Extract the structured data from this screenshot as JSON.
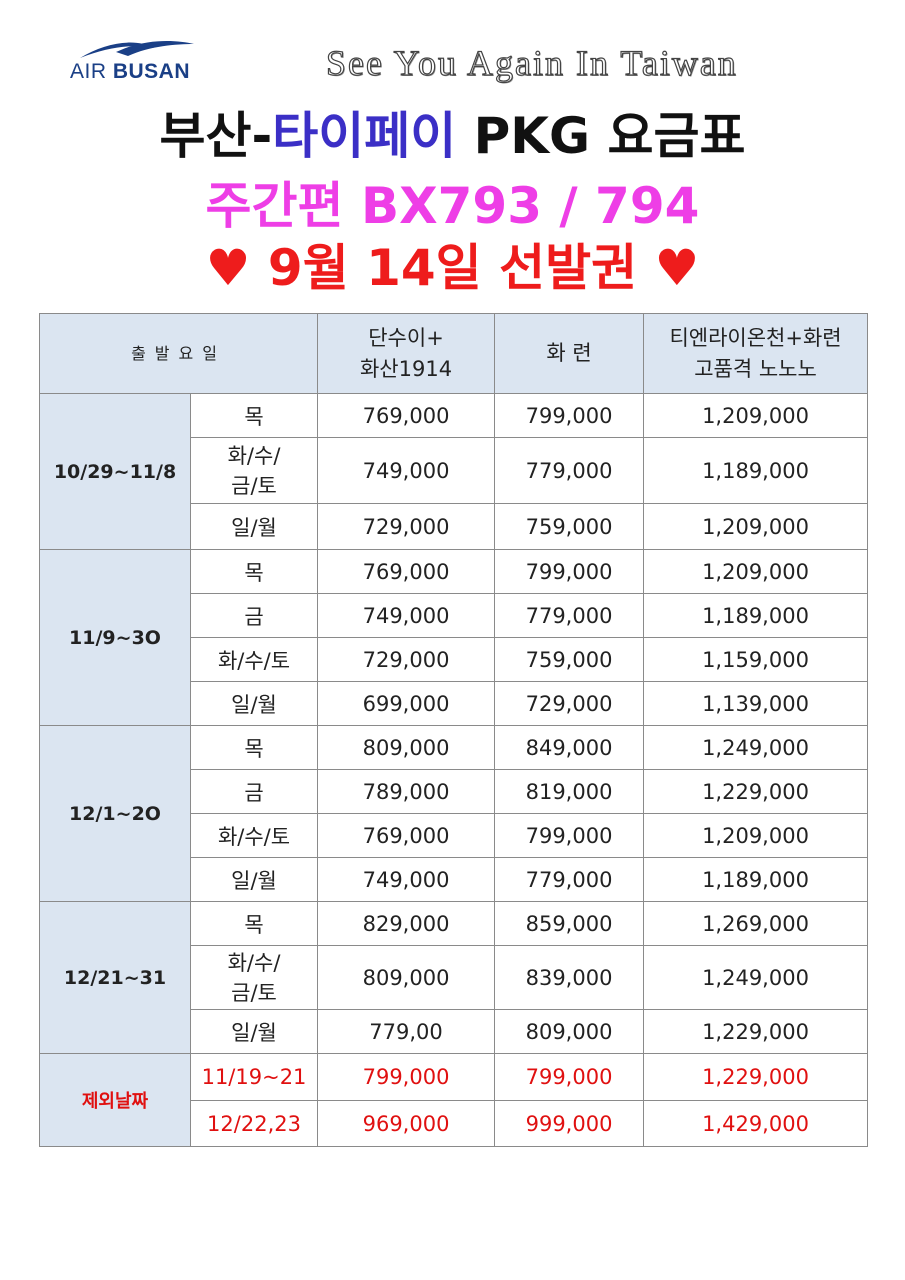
{
  "brand": {
    "logo_air": "AIR ",
    "logo_busan": "BUSAN"
  },
  "tagline": "See You Again In Taiwan",
  "title_line1": {
    "part1": "부산-",
    "part2": "타이페이",
    "part3": " PKG 요금표"
  },
  "title_line2": "주간편 BX793 / 794",
  "title_line3": "♥ 9월 14일 선발권 ♥",
  "colors": {
    "blue_title": "#3b2fc6",
    "magenta": "#ee3ee6",
    "red": "#ee1c1c",
    "header_bg": "#dbe5f1",
    "logo_blue": "#1a3f86"
  },
  "table": {
    "headers": {
      "day": "출발요일",
      "col1_line1": "단수이+",
      "col1_line2": "화산1914",
      "col2": "화 련",
      "col3_line1": "티엔라이온천+화련",
      "col3_line2": "고품격 노노노"
    },
    "groups": [
      {
        "period": "10/29~11/8",
        "rows": [
          {
            "day": "목",
            "p1": "769,000",
            "p2": "799,000",
            "p3": "1,209,000"
          },
          {
            "day": "화/수/",
            "day_line2": "금/토",
            "p1": "749,000",
            "p2": "779,000",
            "p3": "1,189,000"
          },
          {
            "day": "일/월",
            "p1": "729,000",
            "p2": "759,000",
            "p3": "1,209,000"
          }
        ]
      },
      {
        "period": "11/9~3O",
        "rows": [
          {
            "day": "목",
            "p1": "769,000",
            "p2": "799,000",
            "p3": "1,209,000"
          },
          {
            "day": "금",
            "p1": "749,000",
            "p2": "779,000",
            "p3": "1,189,000"
          },
          {
            "day": "화/수/토",
            "p1": "729,000",
            "p2": "759,000",
            "p3": "1,159,000"
          },
          {
            "day": "일/월",
            "p1": "699,000",
            "p2": "729,000",
            "p3": "1,139,000"
          }
        ]
      },
      {
        "period": "12/1~2O",
        "rows": [
          {
            "day": "목",
            "p1": "809,000",
            "p2": "849,000",
            "p3": "1,249,000"
          },
          {
            "day": "금",
            "p1": "789,000",
            "p2": "819,000",
            "p3": "1,229,000"
          },
          {
            "day": "화/수/토",
            "p1": "769,000",
            "p2": "799,000",
            "p3": "1,209,000"
          },
          {
            "day": "일/월",
            "p1": "749,000",
            "p2": "779,000",
            "p3": "1,189,000"
          }
        ]
      },
      {
        "period": "12/21~31",
        "rows": [
          {
            "day": "목",
            "p1": "829,000",
            "p2": "859,000",
            "p3": "1,269,000"
          },
          {
            "day": "화/수/",
            "day_line2": "금/토",
            "p1": "809,000",
            "p2": "839,000",
            "p3": "1,249,000"
          },
          {
            "day": "일/월",
            "p1": "779,00",
            "p2": "809,000",
            "p3": "1,229,000"
          }
        ]
      }
    ],
    "exception": {
      "label": "제외날짜",
      "rows": [
        {
          "date": "11/19~21",
          "p1": "799,000",
          "p2": "799,000",
          "p3": "1,229,000"
        },
        {
          "date": "12/22,23",
          "p1": "969,000",
          "p2": "999,000",
          "p3": "1,429,000"
        }
      ]
    }
  }
}
